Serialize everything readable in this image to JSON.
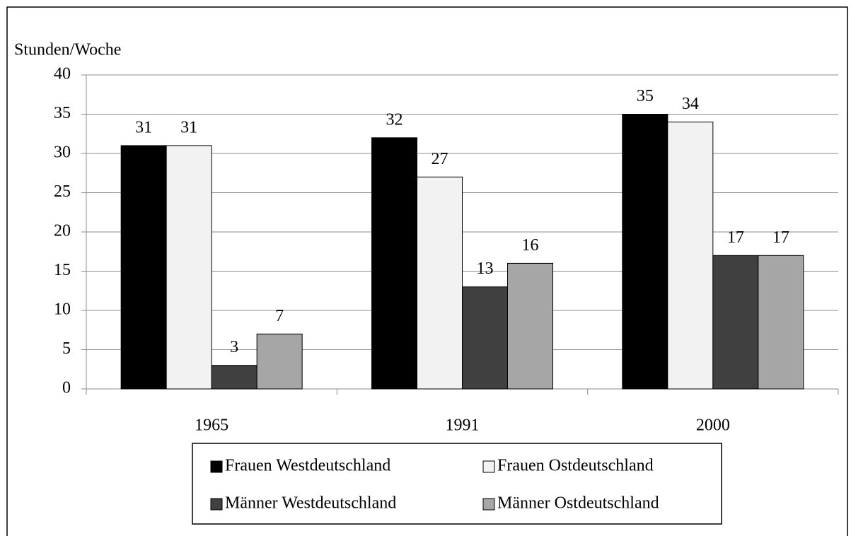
{
  "chart_data": {
    "type": "bar",
    "y_label": "Stunden/Woche",
    "categories": [
      "1965",
      "1991",
      "2000"
    ],
    "series": [
      {
        "name": "Frauen Westdeutschland",
        "color": "#000000",
        "values": [
          31,
          32,
          35
        ]
      },
      {
        "name": "Frauen Ostdeutschland",
        "color": "#f2f2f2",
        "values": [
          31,
          27,
          34
        ]
      },
      {
        "name": "Männer Westdeutschland",
        "color": "#404040",
        "values": [
          3,
          13,
          17
        ]
      },
      {
        "name": "Männer Ostdeutschland",
        "color": "#a6a6a6",
        "values": [
          7,
          16,
          17
        ]
      }
    ],
    "ylim": [
      0,
      40
    ],
    "yticks": [
      0,
      5,
      10,
      15,
      20,
      25,
      30,
      35,
      40
    ],
    "grid": true,
    "legend": "bottom"
  }
}
